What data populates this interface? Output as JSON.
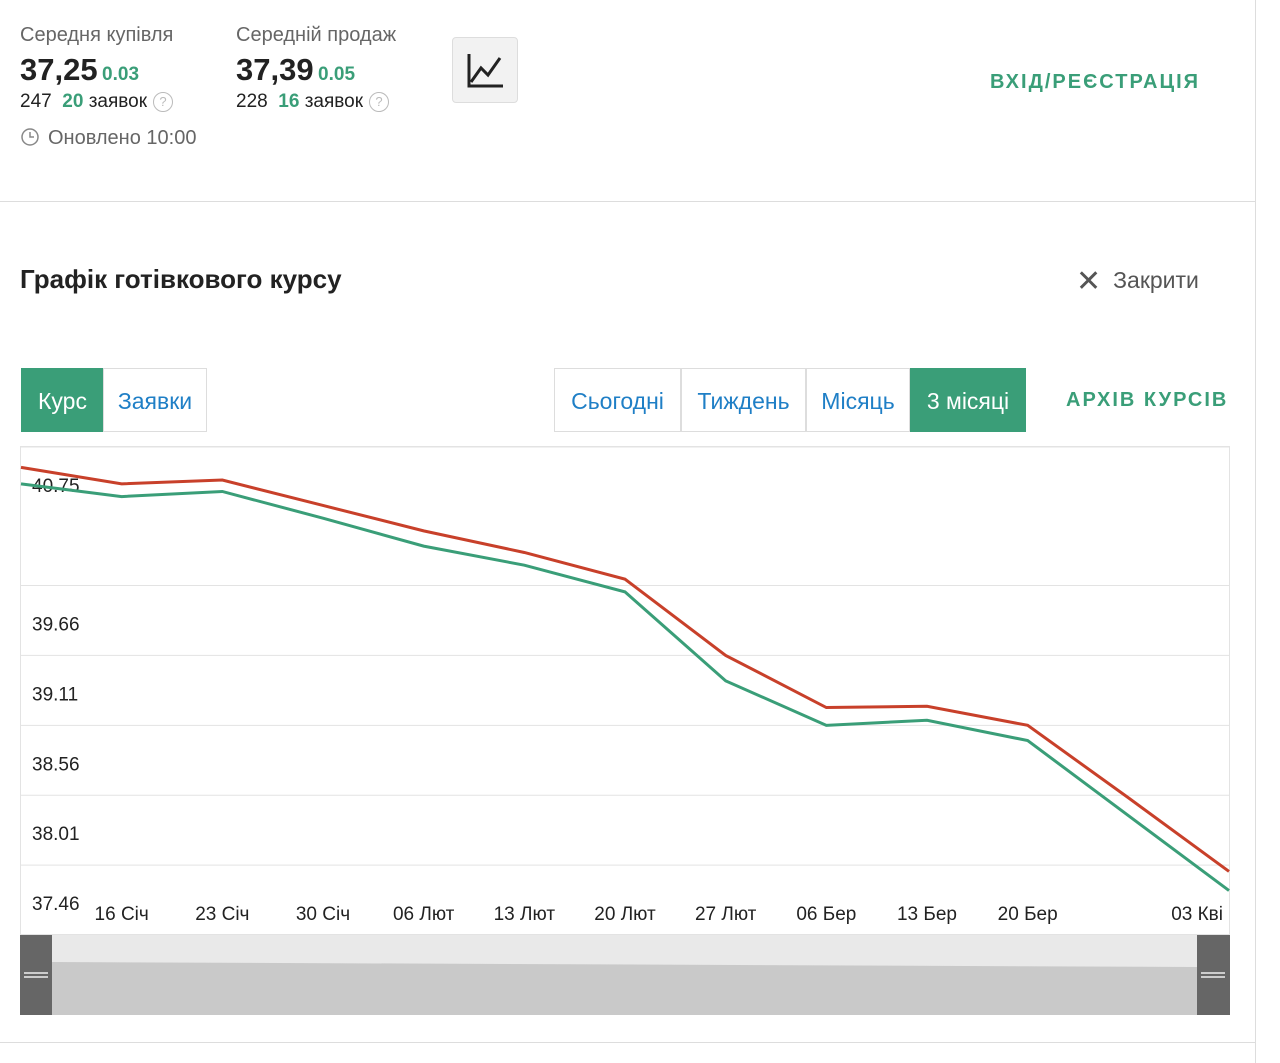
{
  "header": {
    "buy": {
      "label": "Середня купівля",
      "value": "37,25",
      "change": "0.03",
      "count": "247",
      "orders": "20",
      "orders_word": "заявок"
    },
    "sell": {
      "label": "Середній продаж",
      "value": "37,39",
      "change": "0.05",
      "count": "228",
      "orders": "16",
      "orders_word": "заявок"
    },
    "updated": "Оновлено 10:00",
    "login": "ВХІД/РЕЄСТРАЦІЯ"
  },
  "section": {
    "title": "Графік готівкового курсу",
    "close": "Закрити",
    "tabs": [
      "Курс",
      "Заявки"
    ],
    "active_tab": 0,
    "periods": [
      "Сьогодні",
      "Тиждень",
      "Місяць",
      "3 місяці"
    ],
    "active_period": 3,
    "archive": "АРХІВ КУРСІВ"
  },
  "chart_data": {
    "type": "line",
    "categories": [
      null,
      "16 Січ",
      "23 Січ",
      "30 Січ",
      "06 Лют",
      "13 Лют",
      "20 Лют",
      "27 Лют",
      "06 Бер",
      "13 Бер",
      "20 Бер",
      null,
      "03 Кві"
    ],
    "series": [
      {
        "color": "#c8402a",
        "values": [
          40.59,
          40.46,
          40.49,
          40.29,
          40.09,
          39.92,
          39.71,
          39.11,
          38.7,
          38.71,
          38.56,
          37.99,
          37.41
        ]
      },
      {
        "color": "#3a9e78",
        "values": [
          40.46,
          40.36,
          40.4,
          40.19,
          39.97,
          39.82,
          39.61,
          38.91,
          38.56,
          38.6,
          38.44,
          37.85,
          37.26
        ]
      }
    ],
    "ylim": [
      36.91,
      40.75
    ],
    "yticks": [
      37.46,
      38.01,
      38.56,
      39.11,
      39.66,
      40.75
    ],
    "grid": true
  }
}
